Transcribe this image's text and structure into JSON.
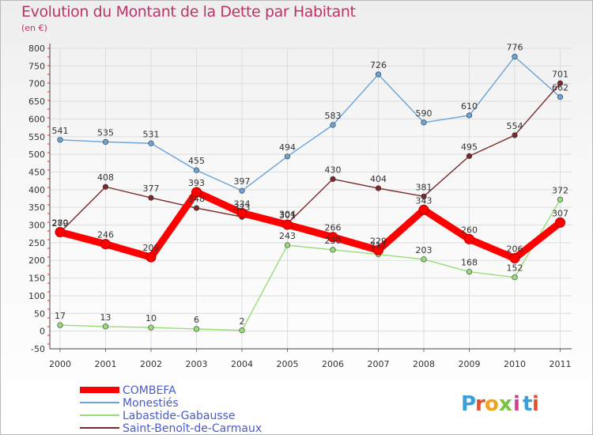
{
  "header": {
    "title": "Evolution du Montant de la Dette par Habitant",
    "unit": "(en €)"
  },
  "logo": {
    "text": "Proxiti",
    "letters": [
      "P",
      "r",
      "o",
      "x",
      "i",
      "t",
      "i"
    ],
    "colors": [
      "#3aa0d8",
      "#e84c2a",
      "#f1a21c",
      "#7cc242",
      "#d63e8c",
      "#3aa0d8",
      "#e84c2a"
    ]
  },
  "chart_data": {
    "type": "line",
    "categories": [
      "2000",
      "2001",
      "2002",
      "2003",
      "2004",
      "2005",
      "2006",
      "2007",
      "2008",
      "2009",
      "2010",
      "2011"
    ],
    "ylim": [
      -50,
      800
    ],
    "yticks": [
      -50,
      0,
      50,
      100,
      150,
      200,
      250,
      300,
      350,
      400,
      450,
      500,
      550,
      600,
      650,
      700,
      750,
      800
    ],
    "grid": true,
    "legend_position": "bottom-left",
    "series": [
      {
        "name": "COMBEFA",
        "color": "#ff0000",
        "values": [
          280,
          246,
          209,
          393,
          334,
          301,
          266,
          229,
          343,
          260,
          206,
          307
        ],
        "labels": [
          "280",
          "246",
          "209",
          "393",
          "334",
          "301",
          "266",
          "229",
          "343",
          "260",
          "206",
          "307"
        ]
      },
      {
        "name": "Monestiés",
        "color": "#6aa3d5",
        "values": [
          541,
          535,
          531,
          455,
          397,
          494,
          583,
          726,
          590,
          610,
          776,
          662
        ],
        "labels": [
          "541",
          "535",
          "531",
          "455",
          "397",
          "494",
          "583",
          "726",
          "590",
          "610",
          "776",
          "662"
        ]
      },
      {
        "name": "Labastide-Gabausse",
        "color": "#99dd77",
        "values": [
          17,
          13,
          10,
          6,
          2,
          243,
          230,
          217,
          203,
          168,
          152,
          372
        ],
        "labels": [
          "17",
          "13",
          "10",
          "6",
          "2",
          "243",
          "230",
          "217",
          "203",
          "168",
          "152",
          "372"
        ]
      },
      {
        "name": "Saint-Benoît-de-Carmaux",
        "color": "#7a2a2a",
        "values": [
          279,
          408,
          377,
          348,
          323,
          304,
          430,
          404,
          381,
          495,
          554,
          701
        ],
        "labels": [
          "279",
          "408",
          "377",
          "348",
          "323",
          "304",
          "430",
          "404",
          "381",
          "495",
          "554",
          "701"
        ]
      }
    ]
  }
}
